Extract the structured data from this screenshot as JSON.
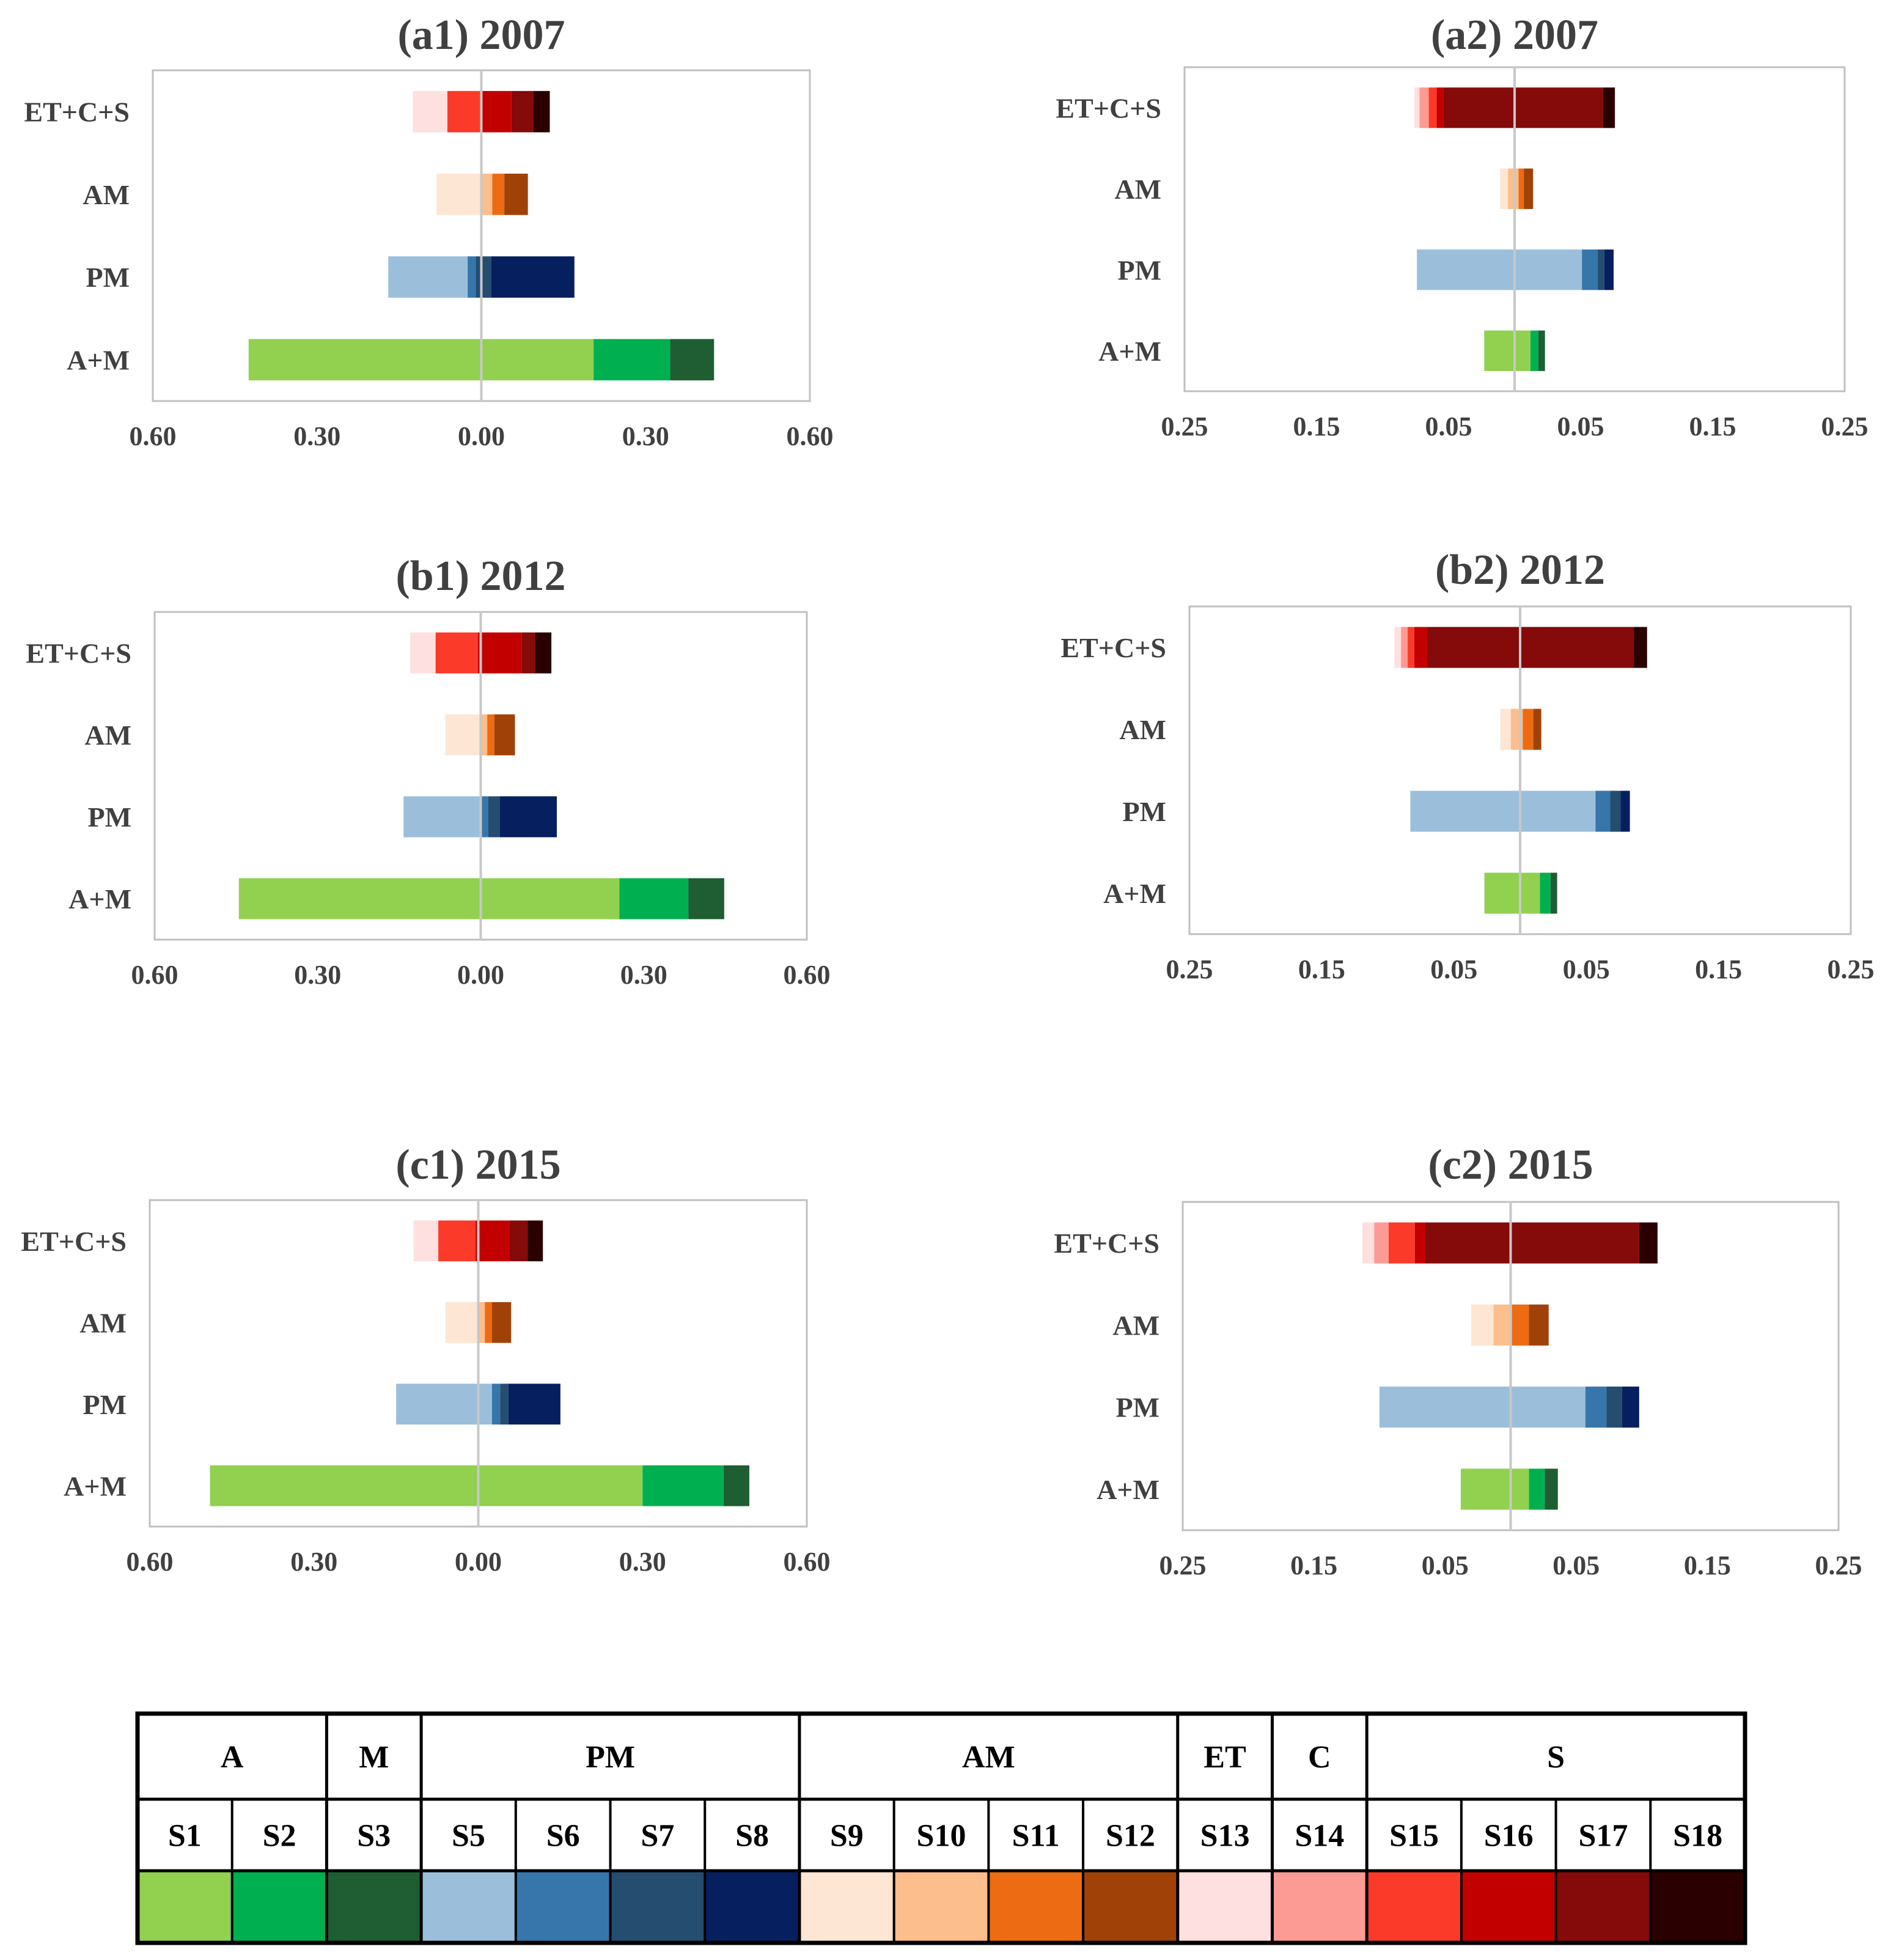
{
  "categories": [
    "ET+C+S",
    "AM",
    "PM",
    "A+M"
  ],
  "colors": {
    "S1": "#92d050",
    "S2": "#00b050",
    "S3": "#1e5e32",
    "S5": "#9bbfdb",
    "S6": "#3676ab",
    "S7": "#244d70",
    "S8": "#061f5e",
    "S9": "#fde6d3",
    "S10": "#fbbe8c",
    "S11": "#ed6b12",
    "S12": "#a04208",
    "S13": "#fee0e0",
    "S14": "#fc9a94",
    "S15": "#fb3a2a",
    "S16": "#c30000",
    "S17": "#850a0a",
    "S18": "#2a0000"
  },
  "chart_data": [
    {
      "id": "a1",
      "type": "bar",
      "orientation": "horizontal",
      "stacked": "diverging",
      "title": "(a1)    2007",
      "xlim": [
        -0.6,
        0.6
      ],
      "xticks": [
        "0.60",
        "0.30",
        "0.00",
        "0.30",
        "0.60"
      ],
      "categories": [
        "ET+C+S",
        "AM",
        "PM",
        "A+M"
      ],
      "bars": [
        {
          "category": "ET+C+S",
          "segments": [
            [
              "S13",
              -0.125,
              -0.062
            ],
            [
              "S15",
              -0.062,
              0.0
            ],
            [
              "S16",
              0.0,
              0.055
            ],
            [
              "S17",
              0.055,
              0.095
            ],
            [
              "S18",
              0.095,
              0.125
            ]
          ]
        },
        {
          "category": "AM",
          "segments": [
            [
              "S9",
              -0.082,
              0.0
            ],
            [
              "S10",
              0.0,
              0.02
            ],
            [
              "S11",
              0.02,
              0.042
            ],
            [
              "S12",
              0.042,
              0.085
            ]
          ]
        },
        {
          "category": "PM",
          "segments": [
            [
              "S5",
              -0.17,
              -0.025
            ],
            [
              "S6",
              -0.025,
              -0.01
            ],
            [
              "S7",
              -0.01,
              0.018
            ],
            [
              "S8",
              0.018,
              0.17
            ]
          ]
        },
        {
          "category": "A+M",
          "segments": [
            [
              "S1",
              -0.425,
              0.205
            ],
            [
              "S2",
              0.205,
              0.345
            ],
            [
              "S3",
              0.345,
              0.425
            ]
          ]
        }
      ]
    },
    {
      "id": "a2",
      "type": "bar",
      "orientation": "horizontal",
      "stacked": "diverging",
      "title": "(a2)    2007",
      "xlim": [
        -0.25,
        0.25
      ],
      "xticks": [
        "0.25",
        "0.15",
        "0.05",
        "0.05",
        "0.15",
        "0.25"
      ],
      "categories": [
        "ET+C+S",
        "AM",
        "PM",
        "A+M"
      ],
      "bars": [
        {
          "category": "ET+C+S",
          "segments": [
            [
              "S13",
              -0.076,
              -0.072
            ],
            [
              "S14",
              -0.072,
              -0.065
            ],
            [
              "S15",
              -0.065,
              -0.059
            ],
            [
              "S16",
              -0.059,
              -0.054
            ],
            [
              "S17",
              -0.054,
              0.067
            ],
            [
              "S18",
              0.067,
              0.076
            ]
          ]
        },
        {
          "category": "AM",
          "segments": [
            [
              "S9",
              -0.011,
              -0.005
            ],
            [
              "S10",
              -0.005,
              0.003
            ],
            [
              "S11",
              0.003,
              0.007
            ],
            [
              "S12",
              0.007,
              0.014
            ]
          ]
        },
        {
          "category": "PM",
          "segments": [
            [
              "S5",
              -0.074,
              0.051
            ],
            [
              "S6",
              0.051,
              0.063
            ],
            [
              "S7",
              0.063,
              0.068
            ],
            [
              "S8",
              0.068,
              0.075
            ]
          ]
        },
        {
          "category": "A+M",
          "segments": [
            [
              "S1",
              -0.023,
              0.012
            ],
            [
              "S2",
              0.012,
              0.018
            ],
            [
              "S3",
              0.018,
              0.023
            ]
          ]
        }
      ]
    },
    {
      "id": "b1",
      "type": "bar",
      "orientation": "horizontal",
      "stacked": "diverging",
      "title": "(b1)    2012",
      "xlim": [
        -0.6,
        0.6
      ],
      "xticks": [
        "0.60",
        "0.30",
        "0.00",
        "0.30",
        "0.60"
      ],
      "categories": [
        "ET+C+S",
        "AM",
        "PM",
        "A+M"
      ],
      "bars": [
        {
          "category": "ET+C+S",
          "segments": [
            [
              "S13",
              -0.13,
              -0.083
            ],
            [
              "S15",
              -0.083,
              -0.005
            ],
            [
              "S16",
              -0.005,
              0.075
            ],
            [
              "S17",
              0.075,
              0.1
            ],
            [
              "S18",
              0.1,
              0.13
            ]
          ]
        },
        {
          "category": "AM",
          "segments": [
            [
              "S9",
              -0.065,
              0.0
            ],
            [
              "S10",
              0.0,
              0.012
            ],
            [
              "S11",
              0.012,
              0.025
            ],
            [
              "S12",
              0.025,
              0.063
            ]
          ]
        },
        {
          "category": "PM",
          "segments": [
            [
              "S5",
              -0.142,
              0.0
            ],
            [
              "S6",
              0.0,
              0.014
            ],
            [
              "S7",
              0.014,
              0.035
            ],
            [
              "S8",
              0.035,
              0.14
            ]
          ]
        },
        {
          "category": "A+M",
          "segments": [
            [
              "S1",
              -0.445,
              0.255
            ],
            [
              "S2",
              0.255,
              0.382
            ],
            [
              "S3",
              0.382,
              0.448
            ]
          ]
        }
      ]
    },
    {
      "id": "b2",
      "type": "bar",
      "orientation": "horizontal",
      "stacked": "diverging",
      "title": "(b2)    2012",
      "xlim": [
        -0.25,
        0.25
      ],
      "xticks": [
        "0.25",
        "0.15",
        "0.05",
        "0.05",
        "0.15",
        "0.25"
      ],
      "categories": [
        "ET+C+S",
        "AM",
        "PM",
        "A+M"
      ],
      "bars": [
        {
          "category": "ET+C+S",
          "segments": [
            [
              "S13",
              -0.095,
              -0.09
            ],
            [
              "S14",
              -0.09,
              -0.085
            ],
            [
              "S15",
              -0.085,
              -0.08
            ],
            [
              "S16",
              -0.08,
              -0.07
            ],
            [
              "S17",
              -0.07,
              0.086
            ],
            [
              "S18",
              0.086,
              0.096
            ]
          ]
        },
        {
          "category": "AM",
          "segments": [
            [
              "S9",
              -0.015,
              -0.007
            ],
            [
              "S10",
              -0.007,
              0.002
            ],
            [
              "S11",
              0.002,
              0.01
            ],
            [
              "S12",
              0.01,
              0.016
            ]
          ]
        },
        {
          "category": "PM",
          "segments": [
            [
              "S5",
              -0.083,
              0.057
            ],
            [
              "S6",
              0.057,
              0.068
            ],
            [
              "S7",
              0.068,
              0.076
            ],
            [
              "S8",
              0.076,
              0.083
            ]
          ]
        },
        {
          "category": "A+M",
          "segments": [
            [
              "S1",
              -0.027,
              0.015
            ],
            [
              "S2",
              0.015,
              0.023
            ],
            [
              "S3",
              0.023,
              0.028
            ]
          ]
        }
      ]
    },
    {
      "id": "c1",
      "type": "bar",
      "orientation": "horizontal",
      "stacked": "diverging",
      "title": "(c1)    2015",
      "xlim": [
        -0.6,
        0.6
      ],
      "xticks": [
        "0.60",
        "0.30",
        "0.00",
        "0.30",
        "0.60"
      ],
      "categories": [
        "ET+C+S",
        "AM",
        "PM",
        "A+M"
      ],
      "bars": [
        {
          "category": "ET+C+S",
          "segments": [
            [
              "S13",
              -0.118,
              -0.073
            ],
            [
              "S15",
              -0.073,
              -0.005
            ],
            [
              "S16",
              -0.005,
              0.057
            ],
            [
              "S17",
              0.057,
              0.09
            ],
            [
              "S18",
              0.09,
              0.118
            ]
          ]
        },
        {
          "category": "AM",
          "segments": [
            [
              "S9",
              -0.06,
              0.0
            ],
            [
              "S10",
              0.0,
              0.012
            ],
            [
              "S11",
              0.012,
              0.025
            ],
            [
              "S12",
              0.025,
              0.06
            ]
          ]
        },
        {
          "category": "PM",
          "segments": [
            [
              "S5",
              -0.15,
              0.025
            ],
            [
              "S6",
              0.025,
              0.04
            ],
            [
              "S7",
              0.04,
              0.055
            ],
            [
              "S8",
              0.055,
              0.15
            ]
          ]
        },
        {
          "category": "A+M",
          "segments": [
            [
              "S1",
              -0.49,
              0.3
            ],
            [
              "S2",
              0.3,
              0.448
            ],
            [
              "S3",
              0.448,
              0.495
            ]
          ]
        }
      ]
    },
    {
      "id": "c2",
      "type": "bar",
      "orientation": "horizontal",
      "stacked": "diverging",
      "title": "(c2)    2015",
      "xlim": [
        -0.25,
        0.25
      ],
      "xticks": [
        "0.25",
        "0.15",
        "0.05",
        "0.05",
        "0.15",
        "0.25"
      ],
      "categories": [
        "ET+C+S",
        "AM",
        "PM",
        "A+M"
      ],
      "bars": [
        {
          "category": "ET+C+S",
          "segments": [
            [
              "S13",
              -0.113,
              -0.104
            ],
            [
              "S14",
              -0.104,
              -0.093
            ],
            [
              "S15",
              -0.093,
              -0.073
            ],
            [
              "S16",
              -0.073,
              -0.065
            ],
            [
              "S17",
              -0.065,
              0.098
            ],
            [
              "S18",
              0.098,
              0.112
            ]
          ]
        },
        {
          "category": "AM",
          "segments": [
            [
              "S9",
              -0.03,
              -0.013
            ],
            [
              "S10",
              -0.013,
              0.001
            ],
            [
              "S11",
              0.001,
              0.014
            ],
            [
              "S12",
              0.014,
              0.029
            ]
          ]
        },
        {
          "category": "PM",
          "segments": [
            [
              "S5",
              -0.1,
              0.057
            ],
            [
              "S6",
              0.057,
              0.073
            ],
            [
              "S7",
              0.073,
              0.085
            ],
            [
              "S8",
              0.085,
              0.098
            ]
          ]
        },
        {
          "category": "A+M",
          "segments": [
            [
              "S1",
              -0.038,
              0.014
            ],
            [
              "S2",
              0.014,
              0.026
            ],
            [
              "S3",
              0.026,
              0.036
            ]
          ]
        }
      ]
    }
  ],
  "legend": {
    "groups": [
      {
        "label": "A",
        "span": 2
      },
      {
        "label": "M",
        "span": 1
      },
      {
        "label": "PM",
        "span": 4
      },
      {
        "label": "AM",
        "span": 4
      },
      {
        "label": "ET",
        "span": 1
      },
      {
        "label": "C",
        "span": 1
      },
      {
        "label": "S",
        "span": 4
      }
    ],
    "sources": [
      "S1",
      "S2",
      "S3",
      "S5",
      "S6",
      "S7",
      "S8",
      "S9",
      "S10",
      "S11",
      "S12",
      "S13",
      "S14",
      "S15",
      "S16",
      "S17",
      "S18"
    ]
  }
}
